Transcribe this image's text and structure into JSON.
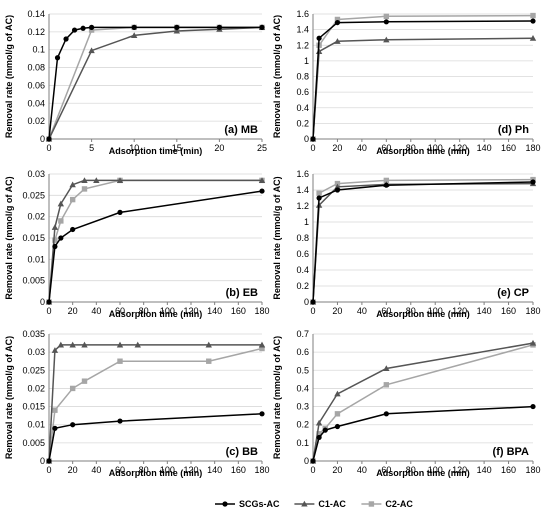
{
  "chart_data": [
    {
      "type": "line",
      "panel_label": "(a) MB",
      "xlabel": "Adsorption time (min)",
      "ylabel": "Removal rate (mmol/g of AC)",
      "xlim": [
        0,
        25
      ],
      "ylim": [
        0,
        0.14
      ],
      "x_ticks": [
        0,
        5,
        10,
        15,
        20,
        25
      ],
      "y_ticks": [
        0,
        0.02,
        0.04,
        0.06,
        0.08,
        0.1,
        0.12,
        0.14
      ],
      "x_tick_labels": [
        "0",
        "5",
        "10",
        "15",
        "20",
        "25"
      ],
      "y_tick_labels": [
        "0",
        "0.02",
        "0.04",
        "0.06",
        "0.08",
        "0.1",
        "0.12",
        "0.14"
      ],
      "grid": "horizontal",
      "series": [
        {
          "key": "scgs",
          "x": [
            0,
            1,
            2,
            3,
            4,
            5,
            10,
            15,
            20,
            25
          ],
          "y": [
            0,
            0.091,
            0.112,
            0.122,
            0.124,
            0.125,
            0.125,
            0.125,
            0.125,
            0.125
          ]
        },
        {
          "key": "c1",
          "x": [
            0,
            5,
            10,
            15,
            20,
            25
          ],
          "y": [
            0,
            0.099,
            0.116,
            0.121,
            0.123,
            0.125
          ]
        },
        {
          "key": "c2",
          "x": [
            0,
            5,
            10,
            15,
            20,
            25
          ],
          "y": [
            0,
            0.122,
            0.125,
            0.125,
            0.125,
            0.125
          ]
        }
      ]
    },
    {
      "type": "line",
      "panel_label": "(d) Ph",
      "xlabel": "Adsorption time (min)",
      "ylabel": "Removal rate (mmol/g of AC)",
      "xlim": [
        0,
        180
      ],
      "ylim": [
        0,
        1.6
      ],
      "x_ticks": [
        0,
        20,
        40,
        60,
        80,
        100,
        120,
        140,
        160,
        180
      ],
      "y_ticks": [
        0,
        0.2,
        0.4,
        0.6,
        0.8,
        1,
        1.2,
        1.4,
        1.6
      ],
      "x_tick_labels": [
        "0",
        "20",
        "40",
        "60",
        "80",
        "100",
        "120",
        "140",
        "160",
        "180"
      ],
      "y_tick_labels": [
        "0",
        "0.2",
        "0.4",
        "0.6",
        "0.8",
        "1",
        "1.2",
        "1.4",
        "1.6"
      ],
      "grid": "horizontal",
      "series": [
        {
          "key": "scgs",
          "x": [
            0,
            5,
            20,
            60,
            180
          ],
          "y": [
            0,
            1.29,
            1.49,
            1.5,
            1.51
          ]
        },
        {
          "key": "c1",
          "x": [
            0,
            5,
            20,
            60,
            180
          ],
          "y": [
            0,
            1.12,
            1.25,
            1.27,
            1.29
          ]
        },
        {
          "key": "c2",
          "x": [
            0,
            5,
            20,
            60,
            180
          ],
          "y": [
            0,
            1.2,
            1.53,
            1.57,
            1.58
          ]
        }
      ]
    },
    {
      "type": "line",
      "panel_label": "(b) EB",
      "xlabel": "Adsorption time (min)",
      "ylabel": "Removal rate (mmol/g of AC)",
      "xlim": [
        0,
        180
      ],
      "ylim": [
        0,
        0.03
      ],
      "x_ticks": [
        0,
        20,
        40,
        60,
        80,
        100,
        120,
        140,
        160,
        180
      ],
      "y_ticks": [
        0,
        0.005,
        0.01,
        0.015,
        0.02,
        0.025,
        0.03
      ],
      "x_tick_labels": [
        "0",
        "20",
        "40",
        "60",
        "80",
        "100",
        "120",
        "140",
        "160",
        "180"
      ],
      "y_tick_labels": [
        "0",
        "0.005",
        "0.01",
        "0.015",
        "0.02",
        "0.025",
        "0.03"
      ],
      "grid": "horizontal",
      "series": [
        {
          "key": "scgs",
          "x": [
            0,
            5,
            10,
            20,
            60,
            180
          ],
          "y": [
            0,
            0.013,
            0.015,
            0.017,
            0.021,
            0.026
          ]
        },
        {
          "key": "c1",
          "x": [
            0,
            5,
            10,
            20,
            30,
            40,
            60,
            180
          ],
          "y": [
            0,
            0.0175,
            0.023,
            0.0275,
            0.0285,
            0.0285,
            0.0285,
            0.0285
          ]
        },
        {
          "key": "c2",
          "x": [
            0,
            5,
            10,
            20,
            30,
            60,
            180
          ],
          "y": [
            0,
            0.0145,
            0.019,
            0.024,
            0.0265,
            0.0285,
            0.0285
          ]
        }
      ]
    },
    {
      "type": "line",
      "panel_label": "(e) CP",
      "xlabel": "Adsorption time (min)",
      "ylabel": "Removal rate (mmol/g of AC)",
      "xlim": [
        0,
        180
      ],
      "ylim": [
        0,
        1.6
      ],
      "x_ticks": [
        0,
        20,
        40,
        60,
        80,
        100,
        120,
        140,
        160,
        180
      ],
      "y_ticks": [
        0,
        0.2,
        0.4,
        0.6,
        0.8,
        1,
        1.2,
        1.4,
        1.6
      ],
      "x_tick_labels": [
        "0",
        "20",
        "40",
        "60",
        "80",
        "100",
        "120",
        "140",
        "160",
        "180"
      ],
      "y_tick_labels": [
        "0",
        "0.2",
        "0.4",
        "0.6",
        "0.8",
        "1",
        "1.2",
        "1.4",
        "1.6"
      ],
      "grid": "horizontal",
      "series": [
        {
          "key": "scgs",
          "x": [
            0,
            5,
            20,
            60,
            180
          ],
          "y": [
            0,
            1.3,
            1.4,
            1.46,
            1.5
          ]
        },
        {
          "key": "c1",
          "x": [
            0,
            5,
            20,
            60,
            180
          ],
          "y": [
            0,
            1.21,
            1.44,
            1.47,
            1.48
          ]
        },
        {
          "key": "c2",
          "x": [
            0,
            5,
            20,
            60,
            180
          ],
          "y": [
            0,
            1.36,
            1.48,
            1.52,
            1.53
          ]
        }
      ]
    },
    {
      "type": "line",
      "panel_label": "(c) BB",
      "xlabel": "Adsorption time (min)",
      "ylabel": "Removal rate (mmol/g of AC)",
      "xlim": [
        0,
        180
      ],
      "ylim": [
        0,
        0.035
      ],
      "x_ticks": [
        0,
        20,
        40,
        60,
        80,
        100,
        120,
        140,
        160,
        180
      ],
      "y_ticks": [
        0,
        0.005,
        0.01,
        0.015,
        0.02,
        0.025,
        0.03,
        0.035
      ],
      "x_tick_labels": [
        "0",
        "20",
        "40",
        "60",
        "80",
        "100",
        "120",
        "140",
        "160",
        "180"
      ],
      "y_tick_labels": [
        "0",
        "0.005",
        "0.01",
        "0.015",
        "0.02",
        "0.025",
        "0.03",
        "0.035"
      ],
      "grid": "horizontal",
      "series": [
        {
          "key": "scgs",
          "x": [
            0,
            5,
            20,
            60,
            180
          ],
          "y": [
            0,
            0.009,
            0.01,
            0.011,
            0.013
          ]
        },
        {
          "key": "c1",
          "x": [
            0,
            5,
            10,
            20,
            30,
            60,
            75,
            135,
            180
          ],
          "y": [
            0,
            0.0305,
            0.032,
            0.032,
            0.032,
            0.032,
            0.032,
            0.032,
            0.032
          ]
        },
        {
          "key": "c2",
          "x": [
            0,
            5,
            20,
            30,
            60,
            135,
            180
          ],
          "y": [
            0,
            0.014,
            0.02,
            0.022,
            0.0275,
            0.0275,
            0.031
          ]
        }
      ]
    },
    {
      "type": "line",
      "panel_label": "(f) BPA",
      "xlabel": "Adsorption time (min)",
      "ylabel": "Removal rate (mmol/g of AC)",
      "xlim": [
        0,
        180
      ],
      "ylim": [
        0,
        0.7
      ],
      "x_ticks": [
        0,
        20,
        40,
        60,
        80,
        100,
        120,
        140,
        160,
        180
      ],
      "y_ticks": [
        0,
        0.1,
        0.2,
        0.3,
        0.4,
        0.5,
        0.6,
        0.7
      ],
      "x_tick_labels": [
        "0",
        "20",
        "40",
        "60",
        "80",
        "100",
        "120",
        "140",
        "160",
        "180"
      ],
      "y_tick_labels": [
        "0",
        "0.1",
        "0.2",
        "0.3",
        "0.4",
        "0.5",
        "0.6",
        "0.7"
      ],
      "grid": "horizontal",
      "series": [
        {
          "key": "scgs",
          "x": [
            0,
            5,
            10,
            20,
            60,
            180
          ],
          "y": [
            0,
            0.13,
            0.17,
            0.19,
            0.26,
            0.3
          ]
        },
        {
          "key": "c1",
          "x": [
            0,
            5,
            20,
            60,
            180
          ],
          "y": [
            0,
            0.21,
            0.37,
            0.51,
            0.65
          ]
        },
        {
          "key": "c2",
          "x": [
            0,
            5,
            10,
            20,
            60,
            180
          ],
          "y": [
            0,
            0.15,
            0.18,
            0.26,
            0.42,
            0.64
          ]
        }
      ]
    }
  ],
  "legend": {
    "placement": "bottom-center",
    "items": [
      {
        "key": "scgs",
        "label": "SCGs-AC",
        "color": "#000000",
        "marker": "circle"
      },
      {
        "key": "c1",
        "label": "C1-AC",
        "color": "#555555",
        "marker": "triangle"
      },
      {
        "key": "c2",
        "label": "C2-AC",
        "color": "#a6a6a6",
        "marker": "square"
      }
    ]
  },
  "colors": {
    "axis": "#7f7f7f",
    "grid": "#d9d9d9",
    "text": "#000000"
  }
}
